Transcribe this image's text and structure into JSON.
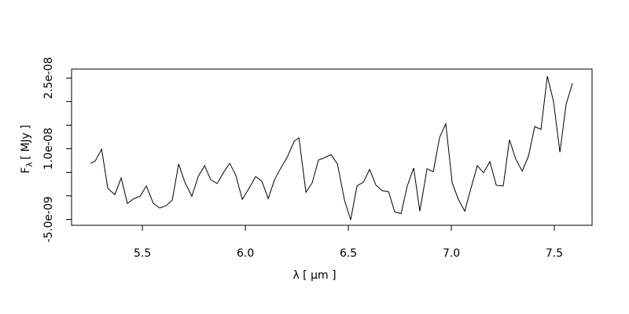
{
  "chart_data": {
    "type": "line",
    "xlabel": "λ [ μm ]",
    "ylabel": {
      "symbol": "F",
      "subscript": "λ",
      "unit": "[ MJy ]"
    },
    "x": [
      5.248,
      5.271,
      5.302,
      5.332,
      5.366,
      5.397,
      5.427,
      5.458,
      5.489,
      5.519,
      5.553,
      5.584,
      5.615,
      5.645,
      5.676,
      5.706,
      5.74,
      5.771,
      5.802,
      5.832,
      5.863,
      5.893,
      5.924,
      5.954,
      5.985,
      6.015,
      6.05,
      6.08,
      6.111,
      6.141,
      6.172,
      6.202,
      6.237,
      6.26,
      6.294,
      6.324,
      6.355,
      6.385,
      6.416,
      6.447,
      6.481,
      6.511,
      6.542,
      6.573,
      6.603,
      6.634,
      6.664,
      6.695,
      6.725,
      6.756,
      6.786,
      6.817,
      6.847,
      6.882,
      6.912,
      6.943,
      6.973,
      7.004,
      7.034,
      7.065,
      7.095,
      7.126,
      7.156,
      7.187,
      7.218,
      7.252,
      7.282,
      7.313,
      7.344,
      7.374,
      7.405,
      7.435,
      7.466,
      7.496,
      7.527,
      7.557,
      7.588
    ],
    "series": [
      {
        "color": "#000000",
        "values": [
          6.9e-09,
          7.4e-09,
          9.9e-09,
          1.6e-09,
          2.5e-10,
          3.8e-09,
          -1.6e-09,
          -6e-10,
          -8e-11,
          2.1e-09,
          -1.6e-09,
          -2.6e-09,
          -2.1e-09,
          -9e-10,
          6.75e-09,
          2.9e-09,
          -1e-10,
          4.1e-09,
          6.4e-09,
          3.4e-09,
          2.6e-09,
          4.9e-09,
          6.9e-09,
          4.3e-09,
          -7.5e-10,
          1.4e-09,
          4.1e-09,
          3.1e-09,
          -6e-10,
          3.4e-09,
          5.9e-09,
          8.1e-09,
          1.16e-08,
          1.23e-08,
          7.5e-10,
          2.75e-09,
          7.6e-09,
          8.1e-09,
          8.75e-09,
          6.75e-09,
          -9e-10,
          -5.1e-09,
          2.1e-09,
          2.9e-09,
          5.6e-09,
          2.25e-09,
          1.1e-09,
          9e-10,
          -3.4e-09,
          -3.75e-09,
          2.1e-09,
          5.9e-09,
          -3.25e-09,
          5.75e-09,
          5.1e-09,
          1.24e-08,
          1.53e-08,
          2.75e-09,
          -7.5e-10,
          -3.25e-09,
          1.6e-09,
          6.4e-09,
          4.9e-09,
          7.25e-09,
          2.25e-09,
          2.1e-09,
          1.19e-08,
          7.75e-09,
          5.25e-09,
          8.4e-09,
          1.47e-08,
          1.41e-08,
          2.54e-08,
          2e-08,
          9.25e-09,
          1.94e-08,
          2.39e-08
        ]
      }
    ],
    "xlim": [
      5.156,
      7.683
    ],
    "ylim": [
      -6.25e-09,
      2.69e-08
    ],
    "xticks": [
      5.5,
      {
        "value": 6,
        "label": "6.0"
      },
      6.5,
      {
        "value": 7,
        "label": "7.0"
      },
      7.5
    ],
    "yticks": [
      {
        "value": -5e-09,
        "label": "-5.0e-09"
      },
      {
        "value": 1e-08,
        "label": "1.0e-08"
      },
      {
        "value": 2.5e-08,
        "label": "2.5e-08"
      }
    ],
    "yminor_ticks": [
      0,
      5e-09,
      1.5e-08,
      2e-08
    ]
  }
}
